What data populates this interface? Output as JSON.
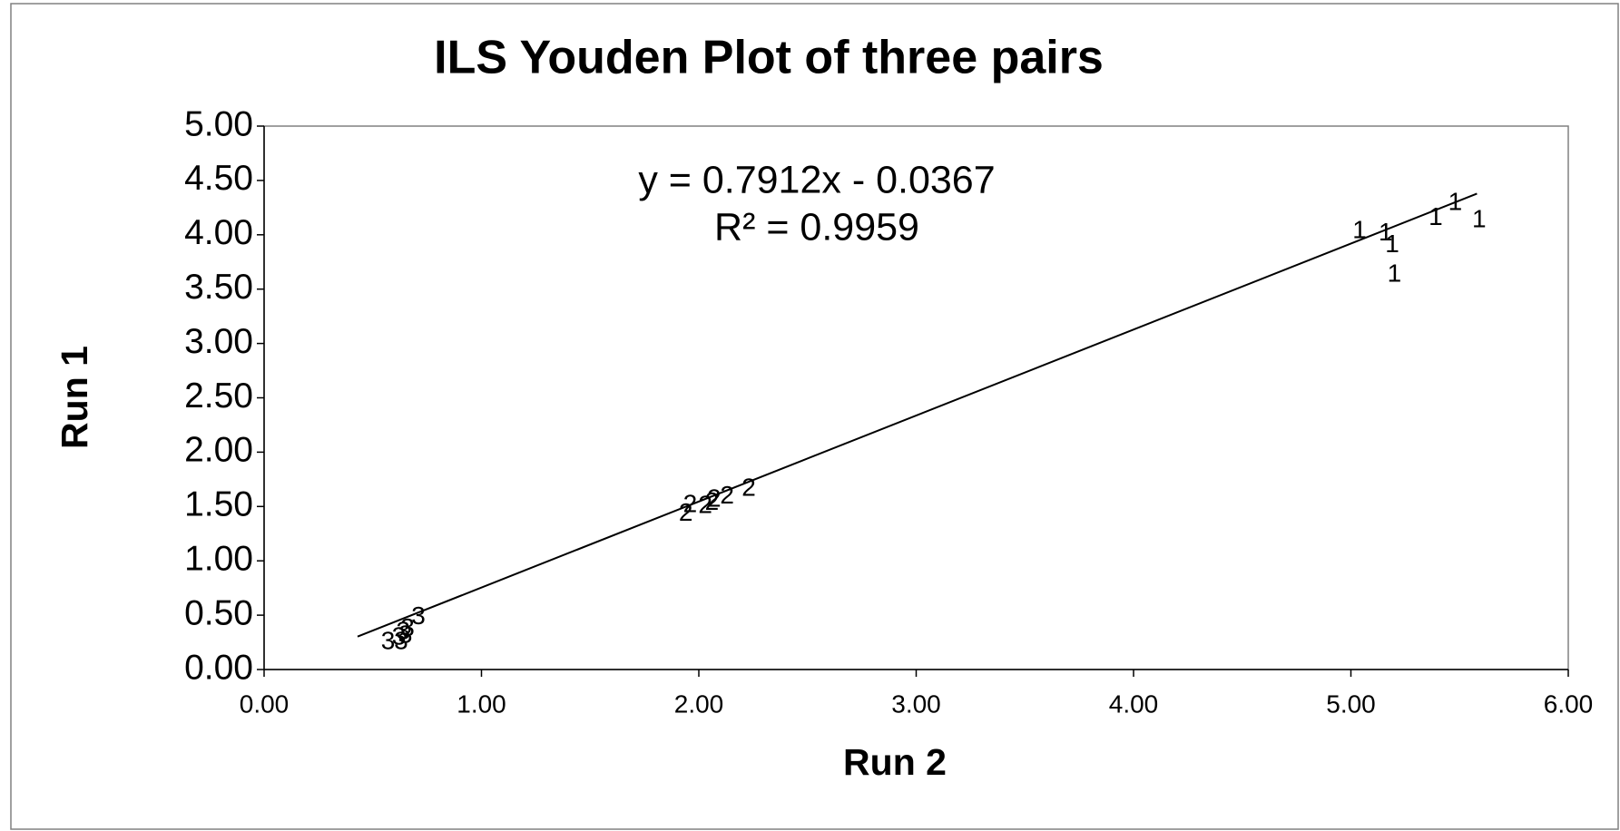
{
  "chart_data": {
    "type": "scatter",
    "title": "ILS Youden Plot of three pairs",
    "x_label": "Run 2",
    "y_label": "Run 1",
    "annotations": [
      "y = 0.7912x - 0.0367",
      "R² = 0.9959"
    ],
    "trendline": {
      "slope": 0.7912,
      "intercept": -0.0367,
      "x_range": [
        0.43,
        5.58
      ],
      "color": "#000000"
    },
    "series": [
      {
        "marker": "1",
        "color": "#000000",
        "x": [
          5.04,
          5.16,
          5.19,
          5.2,
          5.39,
          5.48,
          5.59
        ],
        "values": [
          4.03,
          4.01,
          3.9,
          3.63,
          4.15,
          4.29,
          4.13
        ]
      },
      {
        "marker": "2",
        "color": "#000000",
        "x": [
          1.94,
          1.96,
          2.03,
          2.06,
          2.07,
          2.13,
          2.23
        ],
        "values": [
          1.43,
          1.51,
          1.5,
          1.53,
          1.56,
          1.59,
          1.66
        ]
      },
      {
        "marker": "3",
        "color": "#000000",
        "x": [
          0.57,
          0.62,
          0.63,
          0.64,
          0.66,
          0.71,
          0.65
        ],
        "values": [
          0.25,
          0.29,
          0.25,
          0.34,
          0.37,
          0.48,
          0.31
        ]
      }
    ],
    "xlim": [
      0,
      6
    ],
    "xticks": [
      {
        "value": 0,
        "label": "0.00"
      },
      {
        "value": 1,
        "label": "1.00"
      },
      {
        "value": 2,
        "label": "2.00"
      },
      {
        "value": 3,
        "label": "3.00"
      },
      {
        "value": 4,
        "label": "4.00"
      },
      {
        "value": 5,
        "label": "5.00"
      },
      {
        "value": 6,
        "label": "6.00"
      }
    ],
    "ylim": [
      0,
      5
    ],
    "yticks": [
      {
        "value": 0,
        "label": "0.00"
      },
      {
        "value": 0.5,
        "label": "0.50"
      },
      {
        "value": 1,
        "label": "1.00"
      },
      {
        "value": 1.5,
        "label": "1.50"
      },
      {
        "value": 2,
        "label": "2.00"
      },
      {
        "value": 2.5,
        "label": "2.50"
      },
      {
        "value": 3,
        "label": "3.00"
      },
      {
        "value": 3.5,
        "label": "3.50"
      },
      {
        "value": 4,
        "label": "4.00"
      },
      {
        "value": 4.5,
        "label": "4.50"
      },
      {
        "value": 5,
        "label": "5.00"
      }
    ],
    "grid": false
  }
}
